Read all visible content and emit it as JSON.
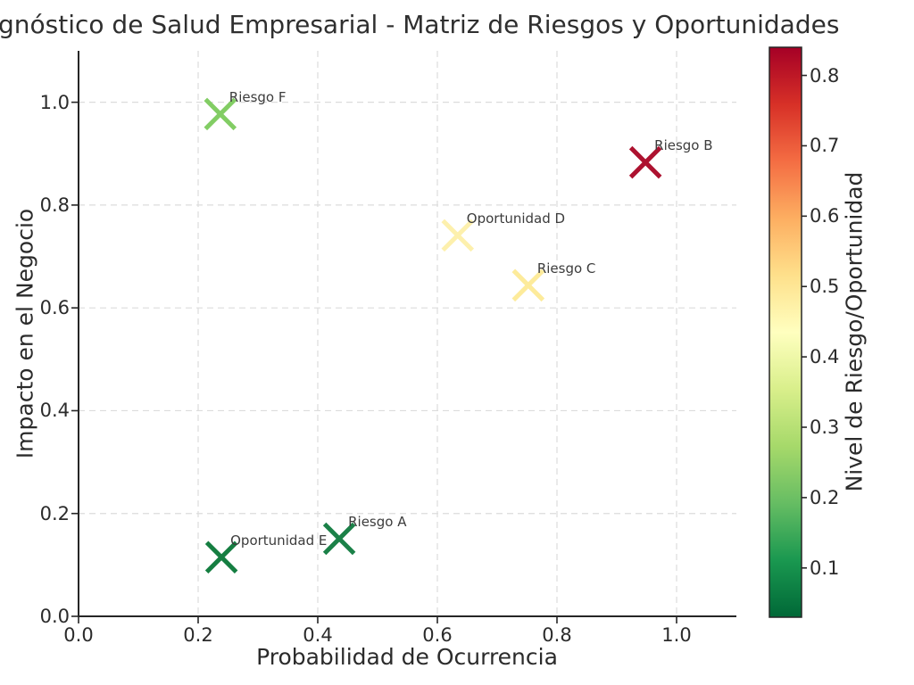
{
  "chart_data": {
    "type": "scatter",
    "title": "gnóstico de Salud Empresarial - Matriz de Riesgos y Oportunidades",
    "xlabel": "Probabilidad de Ocurrencia",
    "ylabel": "Impacto en el Negocio",
    "xlim": [
      0.0,
      1.1
    ],
    "ylim": [
      0.0,
      1.1
    ],
    "grid": true,
    "grid_style": "dashed",
    "marker": "x",
    "xticks": {
      "values": [
        0.0,
        0.2,
        0.4,
        0.6,
        0.8,
        1.0
      ],
      "labels": [
        "0.0",
        "0.2",
        "0.4",
        "0.6",
        "0.8",
        "1.0"
      ]
    },
    "yticks": {
      "values": [
        0.0,
        0.2,
        0.4,
        0.6,
        0.8,
        1.0
      ],
      "labels": [
        "0.0",
        "0.2",
        "0.4",
        "0.6",
        "0.8",
        "1.0"
      ]
    },
    "points": [
      {
        "label": "Riesgo A",
        "x": 0.436,
        "y": 0.151,
        "level": 0.1,
        "color": "#1b8148"
      },
      {
        "label": "Riesgo B",
        "x": 0.948,
        "y": 0.883,
        "level": 0.84,
        "color": "#ad1230"
      },
      {
        "label": "Riesgo C",
        "x": 0.752,
        "y": 0.644,
        "level": 0.48,
        "color": "#fdeb9b"
      },
      {
        "label": "Oportunidad D",
        "x": 0.634,
        "y": 0.741,
        "level": 0.45,
        "color": "#fdf0ad"
      },
      {
        "label": "Oportunidad E",
        "x": 0.239,
        "y": 0.115,
        "level": 0.03,
        "color": "#157e41"
      },
      {
        "label": "Riesgo F",
        "x": 0.237,
        "y": 0.977,
        "level": 0.25,
        "color": "#82cd64"
      }
    ],
    "colorbar": {
      "label": "Nivel de Riesgo/Oportunidad",
      "colormap": "RdYlGn_r",
      "vmin": 0.03,
      "vmax": 0.84,
      "tick_values": [
        0.8,
        0.7,
        0.6,
        0.5,
        0.4,
        0.3,
        0.2,
        0.1
      ],
      "tick_labels": [
        "0.8",
        "0.7",
        "0.6",
        "0.5",
        "0.4",
        "0.3",
        "0.2",
        "0.1"
      ],
      "gradient_top_to_bottom": [
        "#a50026",
        "#d73027",
        "#f46d43",
        "#fdae61",
        "#fee08b",
        "#ffffbf",
        "#d9ef8b",
        "#a6d96a",
        "#66bd63",
        "#1a9850",
        "#006837"
      ]
    },
    "style_colors": {
      "text": "#2b2b2b",
      "annotation": "#3c3c3c",
      "grid": "#dcdcdc",
      "spine": "#262626"
    }
  }
}
